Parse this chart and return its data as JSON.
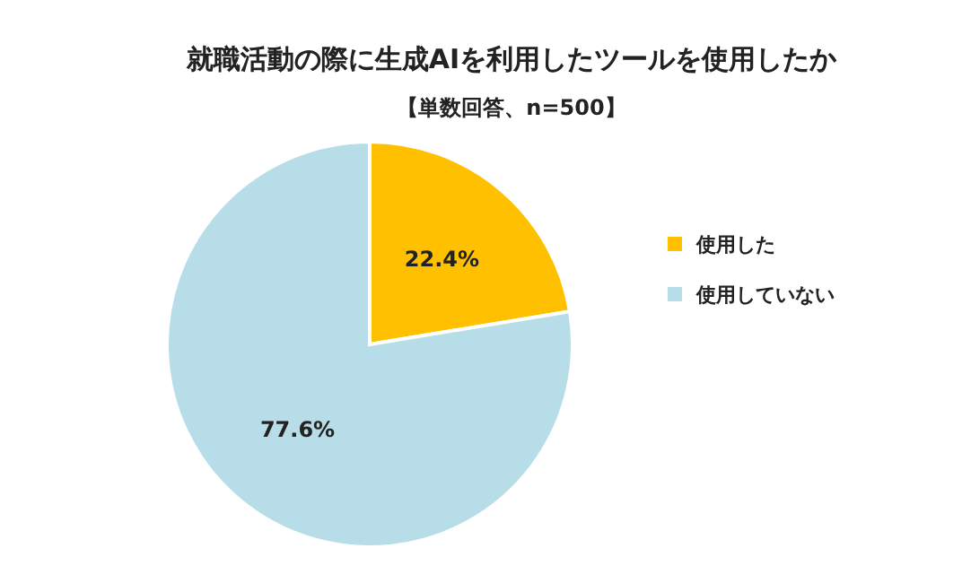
{
  "chart_data": {
    "type": "pie",
    "title": "就職活動の際に生成AIを利用したツールを使用したか",
    "subtitle": "【単数回答、n=500】",
    "categories": [
      "使用した",
      "使用していない"
    ],
    "values": [
      22.4,
      77.6
    ],
    "colors": [
      "#ffc000",
      "#b7dde8"
    ],
    "value_labels": [
      "22.4%",
      "77.6%"
    ],
    "legend": "right"
  }
}
